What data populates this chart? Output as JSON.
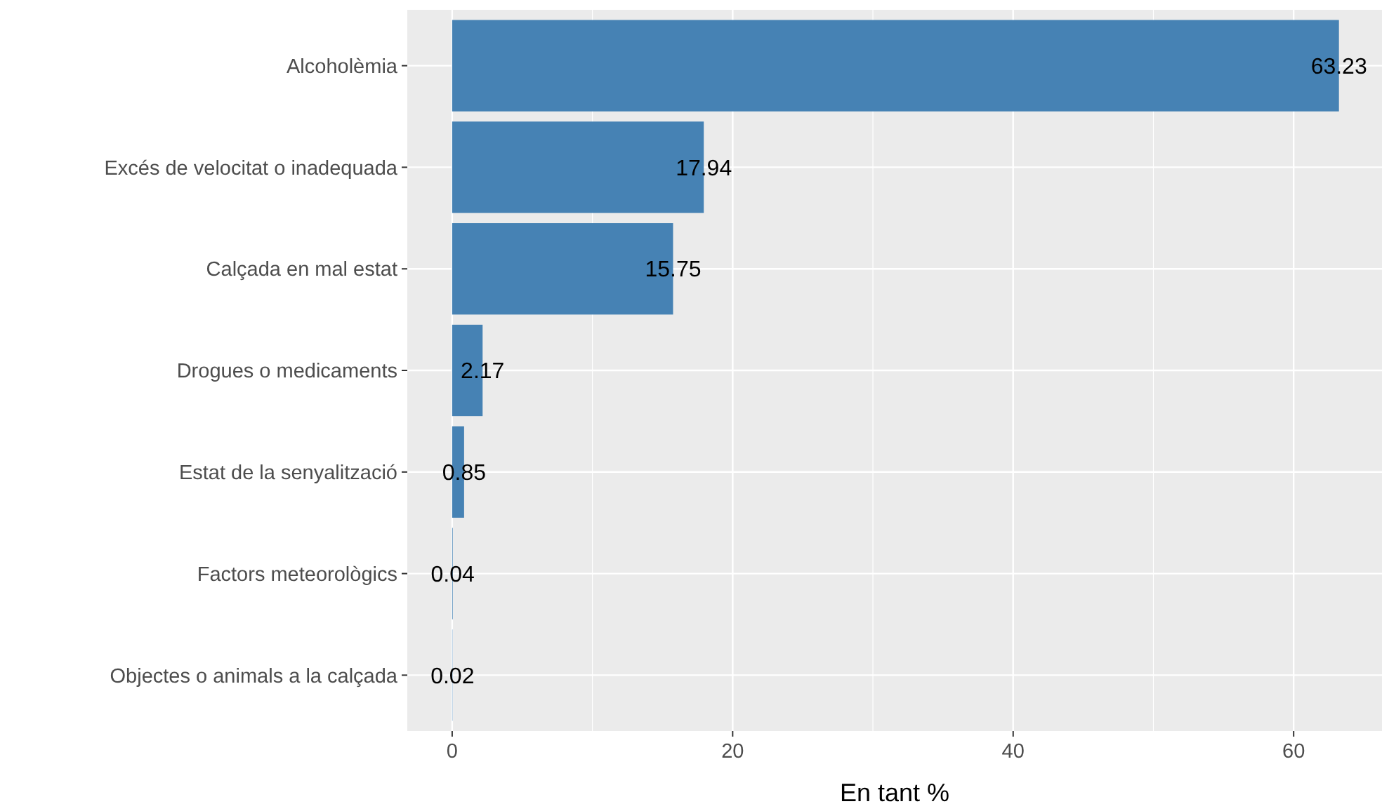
{
  "chart_data": {
    "type": "bar",
    "orientation": "horizontal",
    "categories": [
      "Alcoholèmia",
      "Excés de velocitat o inadequada",
      "Calçada en mal estat",
      "Drogues o medicaments",
      "Estat de la senyalització",
      "Factors meteorològics",
      "Objectes o animals a la calçada"
    ],
    "values": [
      63.23,
      17.94,
      15.75,
      2.17,
      0.85,
      0.04,
      0.02
    ],
    "color": "#4682b4",
    "xlim": [
      -3.2,
      66.3
    ],
    "xticks": [
      0,
      20,
      40,
      60
    ],
    "xlabel": "En tant %",
    "data_labels": true,
    "grid": true
  }
}
